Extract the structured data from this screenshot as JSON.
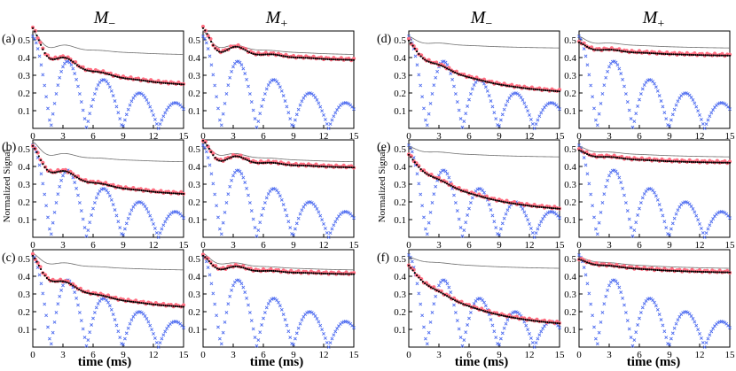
{
  "columns": [
    {
      "symbol": "M",
      "sub": "−"
    },
    {
      "symbol": "M",
      "sub": "+"
    },
    {
      "symbol": "M",
      "sub": "−"
    },
    {
      "symbol": "M",
      "sub": "+"
    }
  ],
  "xlabel": "time (ms)",
  "ylabel": "Normalized Signal",
  "panel_labels": [
    "(a)",
    "(b)",
    "(c)",
    "(d)",
    "(e)",
    "(f)"
  ],
  "colors": {
    "reference_line": "#6f6f6f",
    "red_points": "#ff6f82",
    "black_fit": "#000000",
    "blue_crosses": "#4f6df0",
    "axis": "#000000"
  },
  "chart_data": {
    "type": "scatter",
    "xlim": [
      0,
      15
    ],
    "ylim": [
      0,
      0.55
    ],
    "xticks": [
      0,
      3,
      6,
      9,
      12,
      15
    ],
    "yticks": [
      0.1,
      0.2,
      0.3,
      0.4,
      0.5
    ],
    "series_encoding": {
      "reference_line": "thin gray line",
      "red_points": "red circles",
      "black_fit": "black dotted line",
      "blue_crosses": "blue crosses"
    },
    "panels": [
      {
        "label": "(a)",
        "column": "M−",
        "ref": {
          "start": 0.5,
          "end": 0.41,
          "osc": 0.05,
          "damp": 0.5
        },
        "meas": {
          "start": 0.5,
          "end": 0.23,
          "osc": 0.07,
          "damp": 0.4
        },
        "blue": {
          "amp": 0.52,
          "freq": 0.14,
          "decay": 0.09
        }
      },
      {
        "label": "(a)",
        "column": "M+",
        "ref": {
          "start": 0.5,
          "end": 0.41,
          "osc": 0.05,
          "damp": 0.5
        },
        "meas": {
          "start": 0.5,
          "end": 0.38,
          "osc": 0.07,
          "damp": 0.4
        },
        "blue": {
          "amp": 0.52,
          "freq": 0.14,
          "decay": 0.09
        }
      },
      {
        "label": "(d)",
        "column": "M−",
        "ref": {
          "start": 0.5,
          "end": 0.45,
          "osc": 0.02,
          "damp": 0.6
        },
        "meas": {
          "start": 0.47,
          "end": 0.19,
          "osc": 0.03,
          "damp": 0.5
        },
        "blue": {
          "amp": 0.52,
          "freq": 0.14,
          "decay": 0.09
        }
      },
      {
        "label": "(d)",
        "column": "M+",
        "ref": {
          "start": 0.5,
          "end": 0.45,
          "osc": 0.02,
          "damp": 0.6
        },
        "meas": {
          "start": 0.47,
          "end": 0.41,
          "osc": 0.02,
          "damp": 0.5
        },
        "blue": {
          "amp": 0.52,
          "freq": 0.14,
          "decay": 0.09
        }
      },
      {
        "label": "(b)",
        "column": "M−",
        "ref": {
          "start": 0.5,
          "end": 0.42,
          "osc": 0.04,
          "damp": 0.5
        },
        "meas": {
          "start": 0.46,
          "end": 0.23,
          "osc": 0.06,
          "damp": 0.4
        },
        "blue": {
          "amp": 0.52,
          "freq": 0.14,
          "decay": 0.09
        }
      },
      {
        "label": "(b)",
        "column": "M+",
        "ref": {
          "start": 0.5,
          "end": 0.42,
          "osc": 0.04,
          "damp": 0.5
        },
        "meas": {
          "start": 0.49,
          "end": 0.39,
          "osc": 0.06,
          "damp": 0.4
        },
        "blue": {
          "amp": 0.52,
          "freq": 0.14,
          "decay": 0.09
        }
      },
      {
        "label": "(e)",
        "column": "M−",
        "ref": {
          "start": 0.5,
          "end": 0.45,
          "osc": 0.015,
          "damp": 0.6
        },
        "meas": {
          "start": 0.45,
          "end": 0.14,
          "osc": 0.02,
          "damp": 0.5
        },
        "blue": {
          "amp": 0.52,
          "freq": 0.14,
          "decay": 0.09
        }
      },
      {
        "label": "(e)",
        "column": "M+",
        "ref": {
          "start": 0.5,
          "end": 0.45,
          "osc": 0.015,
          "damp": 0.6
        },
        "meas": {
          "start": 0.48,
          "end": 0.42,
          "osc": 0.015,
          "damp": 0.5
        },
        "blue": {
          "amp": 0.52,
          "freq": 0.14,
          "decay": 0.09
        }
      },
      {
        "label": "(c)",
        "column": "M−",
        "ref": {
          "start": 0.5,
          "end": 0.43,
          "osc": 0.03,
          "damp": 0.5
        },
        "meas": {
          "start": 0.47,
          "end": 0.21,
          "osc": 0.05,
          "damp": 0.4
        },
        "blue": {
          "amp": 0.52,
          "freq": 0.14,
          "decay": 0.09
        }
      },
      {
        "label": "(c)",
        "column": "M+",
        "ref": {
          "start": 0.5,
          "end": 0.43,
          "osc": 0.03,
          "damp": 0.5
        },
        "meas": {
          "start": 0.48,
          "end": 0.41,
          "osc": 0.04,
          "damp": 0.4
        },
        "blue": {
          "amp": 0.52,
          "freq": 0.14,
          "decay": 0.09
        }
      },
      {
        "label": "(f)",
        "column": "M−",
        "ref": {
          "start": 0.5,
          "end": 0.44,
          "osc": 0.01,
          "damp": 0.6
        },
        "meas": {
          "start": 0.45,
          "end": 0.11,
          "osc": 0.015,
          "damp": 0.5
        },
        "blue": {
          "amp": 0.52,
          "freq": 0.14,
          "decay": 0.09
        }
      },
      {
        "label": "(f)",
        "column": "M+",
        "ref": {
          "start": 0.5,
          "end": 0.44,
          "osc": 0.01,
          "damp": 0.6
        },
        "meas": {
          "start": 0.49,
          "end": 0.42,
          "osc": 0.01,
          "damp": 0.5
        },
        "blue": {
          "amp": 0.52,
          "freq": 0.14,
          "decay": 0.09
        }
      }
    ]
  }
}
